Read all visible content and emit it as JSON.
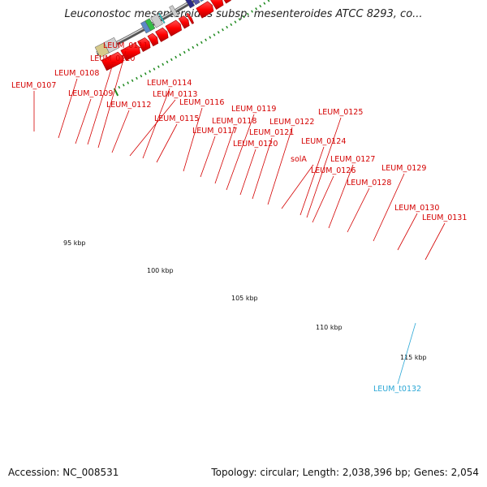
{
  "title": "Leuconostoc mesenteroides subsp. mesenteroides ATCC 8293, co...",
  "footer": {
    "accession": "Accession: NC_008531",
    "summary": "Topology: circular; Length: 2,038,396 bp; Genes: 2,054"
  },
  "scale_labels": [
    "95 kbp",
    "100 kbp",
    "105 kbp",
    "110 kbp",
    "115 kbp"
  ],
  "gene_labels": [
    "LEUM_0107",
    "LEUM_0108",
    "LEUM_0109",
    "LEUM_0110",
    "LEUM_0111",
    "LEUM_0112",
    "LEUM_0113",
    "LEUM_0114",
    "LEUM_0115",
    "LEUM_0116",
    "LEUM_0117",
    "LEUM_0118",
    "LEUM_0119",
    "LEUM_0120",
    "LEUM_0121",
    "LEUM_0122",
    "solA",
    "LEUM_0124",
    "LEUM_0125",
    "LEUM_0126",
    "LEUM_0127",
    "LEUM_0128",
    "LEUM_0129",
    "LEUM_0130",
    "LEUM_0131"
  ],
  "trna_labels": [
    "LEUM_t0132"
  ],
  "colors": {
    "gene": "#ff0000",
    "backbone": "#7a7a7a",
    "tick": "#1f8a1f",
    "trna": "#2ba7d6"
  }
}
